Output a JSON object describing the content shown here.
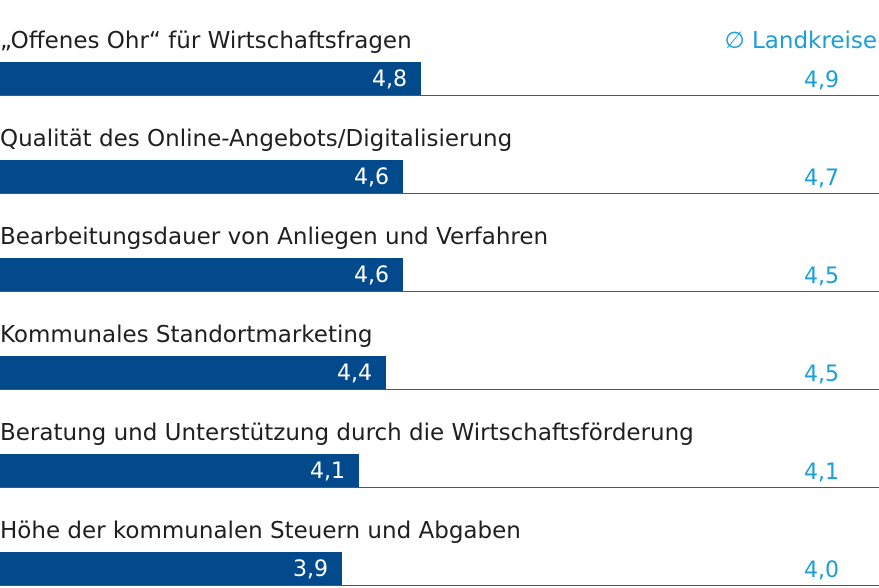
{
  "chart_data": {
    "type": "bar",
    "orientation": "horizontal",
    "categories": [
      "„Offenes Ohr“ für Wirtschaftsfragen",
      "Qualität des Online-Angebots/Digitalisierung",
      "Bearbeitungsdauer von Anliegen und Verfahren",
      "Kommunales Standortmarketing",
      "Beratung und Unterstützung durch die Wirtschaftsförderung",
      "Höhe der kommunalen Steuern und Abgaben"
    ],
    "values": [
      4.8,
      4.6,
      4.6,
      4.4,
      4.1,
      3.9
    ],
    "value_labels": [
      "4,8",
      "4,6",
      "4,6",
      "4,4",
      "4,1",
      "3,9"
    ],
    "comparison": {
      "name": "∅ Landkreise",
      "values": [
        4.9,
        4.7,
        4.5,
        4.5,
        4.1,
        4.0
      ],
      "value_labels": [
        "4,9",
        "4,7",
        "4,5",
        "4,5",
        "4,1",
        "4,0"
      ]
    },
    "xlim": [
      0,
      10
    ],
    "legend_position": "top-right",
    "grid": false,
    "colors": {
      "bar": "#034a8c",
      "accent": "#1a9fd6",
      "rule": "#2c5d93",
      "label": "#1f1f1f"
    }
  }
}
